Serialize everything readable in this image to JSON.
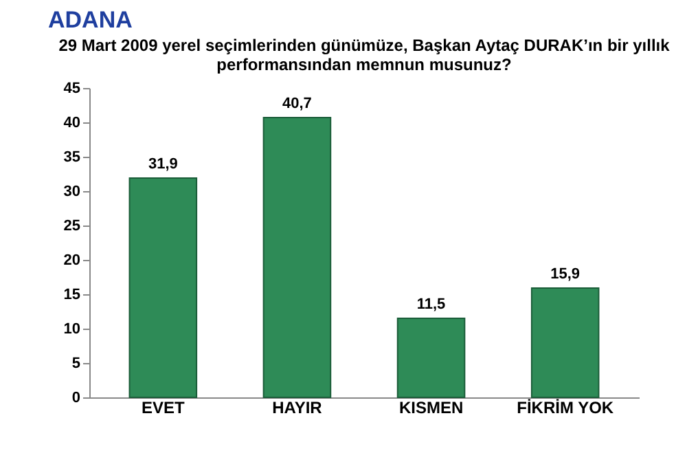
{
  "chart_data": {
    "type": "bar",
    "title": "ADANA",
    "subtitle": "29 Mart 2009 yerel seçimlerinden günümüze, Başkan Aytaç DURAK’ın bir yıllık performansından memnun musunuz?",
    "categories": [
      "EVET",
      "HAYIR",
      "KISMEN",
      "FİKRİM YOK"
    ],
    "values": [
      31.9,
      40.7,
      11.5,
      15.9
    ],
    "value_labels": [
      "31,9",
      "40,7",
      "11,5",
      "15,9"
    ],
    "color": "#2e8b57",
    "ylim": [
      0,
      45
    ],
    "yticks": [
      0,
      5,
      10,
      15,
      20,
      25,
      30,
      35,
      40,
      45
    ],
    "grid": false
  }
}
